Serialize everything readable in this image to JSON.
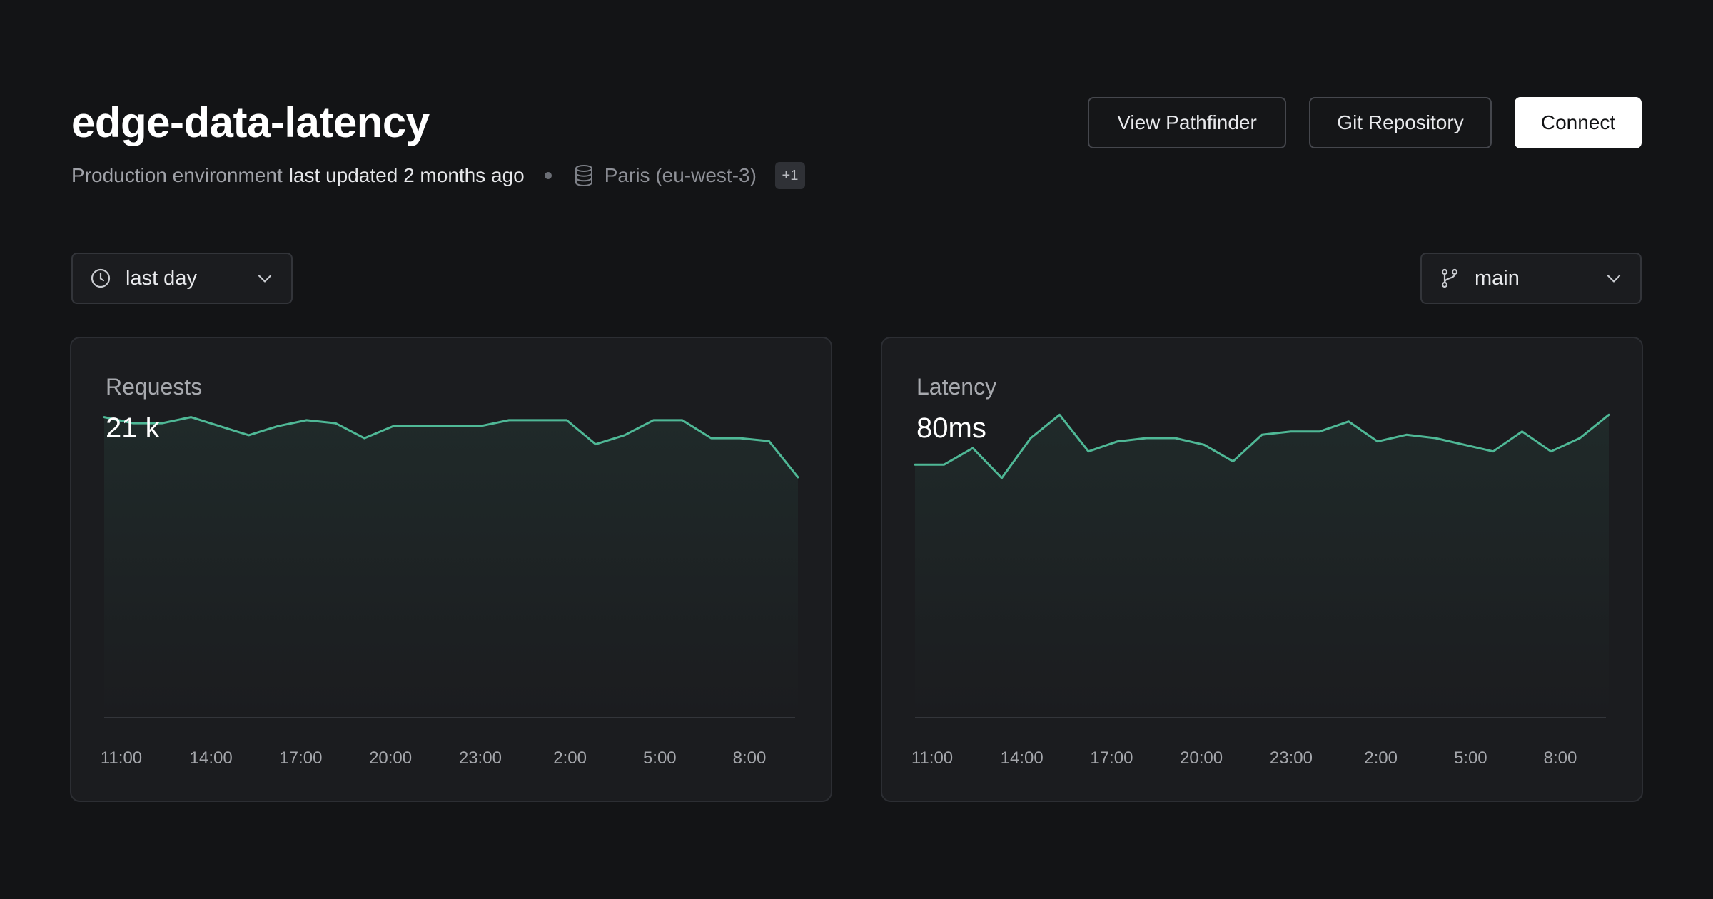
{
  "header": {
    "title": "edge-data-latency",
    "environment": "Production environment",
    "updated": "last updated 2 months ago",
    "region": "Paris (eu-west-3)",
    "region_badge": "+1",
    "region_icon": "database-icon"
  },
  "actions": {
    "pathfinder_label": "View Pathfinder",
    "git_label": "Git Repository",
    "connect_label": "Connect"
  },
  "filters": {
    "time_range": {
      "icon": "clock-icon",
      "selected": "last day"
    },
    "branch": {
      "icon": "git-branch-icon",
      "selected": "main"
    }
  },
  "colors": {
    "background": "#131416",
    "card": "#1b1c1f",
    "accent": "#4fb896"
  },
  "chart_data": [
    {
      "type": "area",
      "title": "Requests",
      "value": "21 k",
      "x_ticks": [
        "11:00",
        "14:00",
        "17:00",
        "20:00",
        "23:00",
        "2:00",
        "5:00",
        "8:00"
      ],
      "x": [
        0,
        1,
        2,
        3,
        4,
        5,
        6,
        7,
        8,
        9,
        10,
        11,
        12,
        13,
        14,
        15,
        16,
        17,
        18,
        19,
        20,
        21,
        22,
        23,
        24
      ],
      "values": [
        100,
        98,
        98,
        100,
        97,
        94,
        97,
        99,
        98,
        93,
        97,
        97,
        97,
        97,
        99,
        99,
        99,
        91,
        94,
        99,
        99,
        93,
        93,
        92,
        80
      ],
      "ylim": [
        0,
        103
      ],
      "grid": false
    },
    {
      "type": "area",
      "title": "Latency",
      "value": "80ms",
      "x_ticks": [
        "11:00",
        "14:00",
        "17:00",
        "20:00",
        "23:00",
        "2:00",
        "5:00",
        "8:00"
      ],
      "x": [
        0,
        1,
        2,
        3,
        4,
        5,
        6,
        7,
        8,
        9,
        10,
        11,
        12,
        13,
        14,
        15,
        16,
        17,
        18,
        19,
        20,
        21,
        22,
        23,
        24
      ],
      "values": [
        76,
        76,
        81,
        72,
        84,
        91,
        80,
        83,
        84,
        84,
        82,
        77,
        85,
        86,
        86,
        89,
        83,
        85,
        84,
        82,
        80,
        86,
        80,
        84,
        91
      ],
      "ylim": [
        0,
        93
      ],
      "grid": false
    }
  ]
}
